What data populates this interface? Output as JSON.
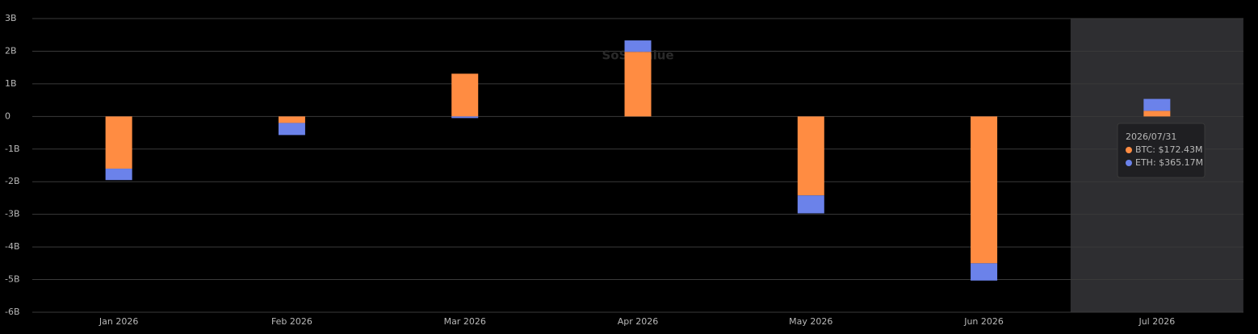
{
  "chart_data": {
    "type": "bar",
    "stacked": true,
    "watermark": "SoSoValue",
    "categories": [
      "Jan 2026",
      "Feb 2026",
      "Mar 2026",
      "Apr 2026",
      "May 2026",
      "Jun 2026",
      "Jul 2026"
    ],
    "series": [
      {
        "name": "BTC",
        "color": "#ff8c42",
        "values": [
          -1.6,
          -0.2,
          1.31,
          1.98,
          -2.42,
          -4.5,
          0.17243
        ]
      },
      {
        "name": "ETH",
        "color": "#6b82ea",
        "values": [
          -0.35,
          -0.37,
          -0.05,
          0.35,
          -0.55,
          -0.53,
          0.36517
        ]
      }
    ],
    "ylim": [
      -6,
      3
    ],
    "yticks": [
      {
        "value": -6,
        "label": "-6B"
      },
      {
        "value": -5,
        "label": "-5B"
      },
      {
        "value": -4,
        "label": "-4B"
      },
      {
        "value": -3,
        "label": "-3B"
      },
      {
        "value": -2,
        "label": "-2B"
      },
      {
        "value": -1,
        "label": "-1B"
      },
      0,
      {
        "value": 1,
        "label": "1B"
      },
      {
        "value": 2,
        "label": "2B"
      },
      {
        "value": 3,
        "label": "3B"
      }
    ],
    "grid": true,
    "highlight_category": 6,
    "tooltip": {
      "title": "2026/07/31",
      "lines": [
        "BTC: $172.43M",
        "ETH: $365.17M"
      ]
    }
  }
}
